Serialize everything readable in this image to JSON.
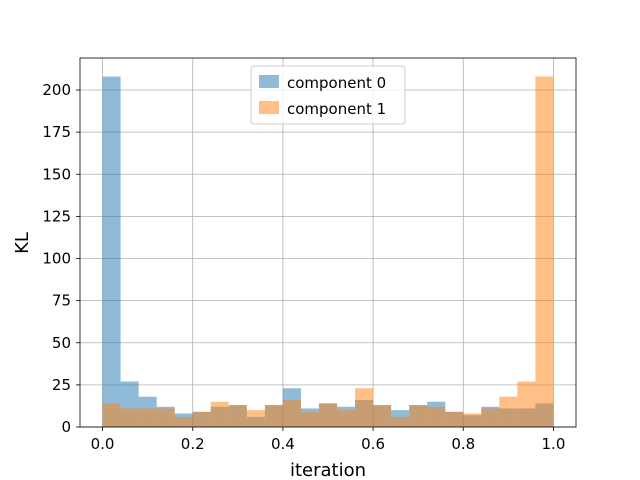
{
  "chart_data": {
    "type": "bar",
    "title": "",
    "xlabel": "iteration",
    "ylabel": "KL",
    "xlim": [
      -0.05,
      1.05
    ],
    "ylim": [
      0,
      219
    ],
    "xticks": [
      0.0,
      0.2,
      0.4,
      0.6,
      0.8,
      1.0
    ],
    "xtick_labels": [
      "0.0",
      "0.2",
      "0.4",
      "0.6",
      "0.8",
      "1.0"
    ],
    "yticks": [
      0,
      25,
      50,
      75,
      100,
      125,
      150,
      175,
      200
    ],
    "ytick_labels": [
      "0",
      "25",
      "50",
      "75",
      "100",
      "125",
      "150",
      "175",
      "200"
    ],
    "grid": true,
    "legend_position": "top-center",
    "bin_edges": [
      0.0,
      0.04,
      0.08,
      0.12,
      0.16,
      0.2,
      0.24,
      0.28,
      0.32,
      0.36,
      0.4,
      0.44,
      0.48,
      0.52,
      0.56,
      0.6,
      0.64,
      0.68,
      0.72,
      0.76,
      0.8,
      0.84,
      0.88,
      0.92,
      0.96,
      1.0
    ],
    "series": [
      {
        "name": "component 0",
        "color": "#1f77b4",
        "alpha": 0.5,
        "values": [
          208,
          27,
          18,
          12,
          8,
          9,
          12,
          13,
          6,
          13,
          23,
          11,
          14,
          12,
          16,
          13,
          10,
          13,
          15,
          9,
          7,
          12,
          11,
          11,
          14
        ]
      },
      {
        "name": "component 1",
        "color": "#ff7f0e",
        "alpha": 0.5,
        "values": [
          14,
          11,
          11,
          11,
          6,
          9,
          15,
          13,
          10,
          13,
          16,
          9,
          14,
          10,
          23,
          13,
          6,
          13,
          12,
          9,
          8,
          11,
          18,
          27,
          208
        ]
      }
    ]
  }
}
